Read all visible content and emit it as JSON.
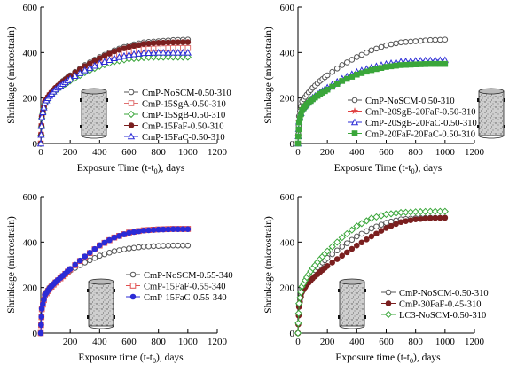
{
  "chart_data": [
    {
      "type": "line",
      "xlabel": "Exposure Time (t-t",
      "xlabel_sub": "0",
      "xlabel_tail": "), days",
      "ylabel": "Shrinkage (microstrain)",
      "xlim": [
        0,
        1200
      ],
      "ylim": [
        0,
        600
      ],
      "xticks": [
        "0",
        "200",
        "400",
        "600",
        "800",
        "1000",
        "1200"
      ],
      "yticks": [
        "0",
        "200",
        "400",
        "600"
      ],
      "legend_position": "center-right",
      "grid": false,
      "series": [
        {
          "name": "CmP-NoSCM-0.50-310",
          "color": "#555555",
          "marker": "circle",
          "x": [
            0,
            7,
            28,
            60,
            100,
            150,
            200,
            300,
            400,
            500,
            600,
            700,
            800,
            900,
            1000
          ],
          "y": [
            0,
            120,
            185,
            215,
            245,
            275,
            300,
            345,
            380,
            410,
            432,
            445,
            450,
            455,
            457
          ]
        },
        {
          "name": "CmP-15SgA-0.50-310",
          "color": "#e07070",
          "marker": "square",
          "x": [
            0,
            7,
            28,
            60,
            100,
            150,
            200,
            300,
            400,
            500,
            600,
            700,
            800,
            900,
            1000
          ],
          "y": [
            0,
            115,
            180,
            212,
            240,
            265,
            290,
            330,
            360,
            388,
            405,
            415,
            418,
            420,
            420
          ]
        },
        {
          "name": "CmP-15SgB-0.50-310",
          "color": "#3aa63a",
          "marker": "diamond",
          "x": [
            0,
            7,
            28,
            60,
            100,
            150,
            200,
            300,
            400,
            500,
            600,
            700,
            800,
            900,
            1000
          ],
          "y": [
            0,
            110,
            175,
            205,
            232,
            255,
            275,
            312,
            340,
            360,
            372,
            378,
            380,
            380,
            380
          ]
        },
        {
          "name": "CmP-15FaF-0.50-310",
          "color": "#7a1f1f",
          "marker": "circle-filled",
          "x": [
            0,
            7,
            28,
            60,
            100,
            150,
            200,
            300,
            400,
            500,
            600,
            700,
            800,
            900,
            1000
          ],
          "y": [
            0,
            118,
            183,
            215,
            245,
            272,
            298,
            340,
            375,
            405,
            425,
            438,
            443,
            445,
            446
          ]
        },
        {
          "name": "CmP-15FaC-0.50-310",
          "color": "#2b2bd6",
          "marker": "triangle",
          "x": [
            0,
            7,
            28,
            60,
            100,
            150,
            200,
            300,
            400,
            500,
            600,
            700,
            800,
            900,
            1000
          ],
          "y": [
            0,
            116,
            180,
            210,
            238,
            262,
            285,
            322,
            352,
            375,
            390,
            398,
            400,
            400,
            400
          ]
        }
      ]
    },
    {
      "type": "line",
      "xlabel": "Exposure Time (t-t",
      "xlabel_sub": "0",
      "xlabel_tail": "), days",
      "ylabel": "Shrinkage (microstrain)",
      "xlim": [
        0,
        1200
      ],
      "ylim": [
        0,
        600
      ],
      "xticks": [
        "0",
        "200",
        "400",
        "600",
        "800",
        "1000",
        "1200"
      ],
      "yticks": [
        "0",
        "200",
        "400",
        "600"
      ],
      "legend_position": "lower-right",
      "grid": false,
      "series": [
        {
          "name": "CmP-NoSCM-0.50-310",
          "color": "#555555",
          "marker": "circle",
          "x": [
            0,
            7,
            28,
            60,
            100,
            150,
            200,
            300,
            400,
            500,
            600,
            700,
            800,
            900,
            1000
          ],
          "y": [
            0,
            120,
            185,
            215,
            245,
            275,
            300,
            345,
            380,
            410,
            432,
            445,
            450,
            455,
            457
          ]
        },
        {
          "name": "CmP-20SgB-20FaF-0.50-310",
          "color": "#e04040",
          "marker": "star",
          "x": [
            0,
            7,
            28,
            60,
            100,
            150,
            200,
            300,
            400,
            500,
            600,
            700,
            800,
            900,
            1000
          ],
          "y": [
            0,
            95,
            150,
            175,
            198,
            220,
            240,
            278,
            305,
            325,
            340,
            348,
            352,
            355,
            356
          ]
        },
        {
          "name": "CmP-20SgB-20FaC-0.50-310",
          "color": "#2b2bd6",
          "marker": "triangle",
          "x": [
            0,
            7,
            28,
            60,
            100,
            150,
            200,
            300,
            400,
            500,
            600,
            700,
            800,
            900,
            1000
          ],
          "y": [
            0,
            97,
            152,
            178,
            202,
            225,
            246,
            285,
            315,
            335,
            350,
            360,
            364,
            366,
            367
          ]
        },
        {
          "name": "CmP-20FaF-20FaC-0.50-310",
          "color": "#3aa63a",
          "marker": "square-filled",
          "x": [
            0,
            7,
            28,
            60,
            100,
            150,
            200,
            300,
            400,
            500,
            600,
            700,
            800,
            900,
            1000
          ],
          "y": [
            0,
            93,
            147,
            172,
            195,
            217,
            237,
            275,
            303,
            323,
            337,
            345,
            348,
            350,
            350
          ]
        }
      ]
    },
    {
      "type": "line",
      "xlabel": "Exposure time (t-t",
      "xlabel_sub": "0",
      "xlabel_tail": "), days",
      "ylabel": "Shrinkage (microstrain)",
      "xlim": [
        0,
        1200
      ],
      "ylim": [
        0,
        600
      ],
      "xticks": [
        "200",
        "400",
        "600",
        "800",
        "1000",
        "1200"
      ],
      "yticks": [
        "0",
        "200",
        "400",
        "600"
      ],
      "legend_position": "lower-right",
      "grid": false,
      "series": [
        {
          "name": "CmP-NoSCM-0.55-340",
          "color": "#555555",
          "marker": "circle",
          "x": [
            0,
            7,
            28,
            60,
            100,
            150,
            200,
            300,
            400,
            500,
            600,
            700,
            800,
            900,
            1000
          ],
          "y": [
            0,
            110,
            170,
            200,
            225,
            250,
            275,
            310,
            340,
            360,
            372,
            380,
            383,
            385,
            385
          ]
        },
        {
          "name": "CmP-15FaF-0.55-340",
          "color": "#e05050",
          "marker": "square",
          "x": [
            0,
            7,
            28,
            60,
            100,
            150,
            200,
            300,
            400,
            500,
            600,
            700,
            800,
            900,
            1000
          ],
          "y": [
            0,
            105,
            165,
            195,
            222,
            250,
            280,
            335,
            385,
            420,
            442,
            452,
            456,
            458,
            458
          ]
        },
        {
          "name": "CmP-15FaC-0.55-340",
          "color": "#2b2bd6",
          "marker": "circle-filled",
          "x": [
            0,
            7,
            28,
            60,
            100,
            150,
            200,
            300,
            400,
            500,
            600,
            700,
            800,
            900,
            1000
          ],
          "y": [
            0,
            107,
            167,
            197,
            224,
            252,
            282,
            337,
            386,
            420,
            441,
            451,
            455,
            457,
            457
          ]
        }
      ]
    },
    {
      "type": "line",
      "xlabel": "Exposure time (t-t",
      "xlabel_sub": "0",
      "xlabel_tail": "), days",
      "ylabel": "Shrinkage (microstrain)",
      "xlim": [
        0,
        1200
      ],
      "ylim": [
        0,
        600
      ],
      "xticks": [
        "0",
        "200",
        "400",
        "600",
        "800",
        "1000",
        "1200"
      ],
      "yticks": [
        "0",
        "200",
        "400",
        "600"
      ],
      "legend_position": "lower-right",
      "grid": false,
      "series": [
        {
          "name": "CmP-NoSCM-0.50-310",
          "color": "#555555",
          "marker": "circle",
          "x": [
            0,
            7,
            28,
            60,
            100,
            150,
            200,
            300,
            400,
            500,
            600,
            700,
            800,
            900,
            1000
          ],
          "y": [
            0,
            125,
            195,
            230,
            265,
            300,
            330,
            380,
            425,
            460,
            485,
            500,
            505,
            507,
            507
          ]
        },
        {
          "name": "CmP-30FaF-0.45-310",
          "color": "#7a1f1f",
          "marker": "circle-filled",
          "x": [
            0,
            7,
            28,
            60,
            100,
            150,
            200,
            300,
            400,
            500,
            600,
            700,
            800,
            900,
            1000
          ],
          "y": [
            0,
            115,
            180,
            212,
            240,
            268,
            295,
            340,
            385,
            425,
            462,
            488,
            500,
            505,
            507
          ]
        },
        {
          "name": "LC3-NoSCM-0.50-310",
          "color": "#3aa63a",
          "marker": "diamond",
          "x": [
            0,
            7,
            28,
            60,
            100,
            150,
            200,
            300,
            400,
            500,
            600,
            700,
            800,
            900,
            1000
          ],
          "y": [
            0,
            130,
            205,
            245,
            285,
            325,
            360,
            420,
            470,
            505,
            522,
            530,
            533,
            535,
            535
          ]
        }
      ]
    }
  ]
}
